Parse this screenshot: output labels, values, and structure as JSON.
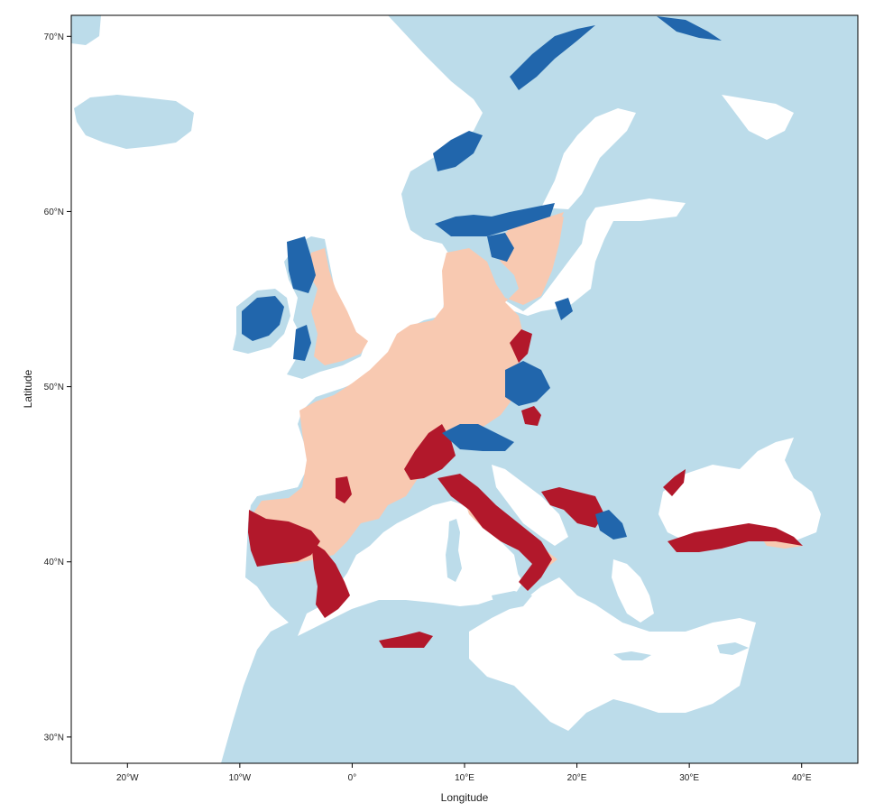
{
  "map": {
    "xlabel": "Longitude",
    "ylabel": "Latitude",
    "xlim": [
      -25,
      45
    ],
    "ylim": [
      28.5,
      71.2
    ],
    "x_ticks": [
      {
        "value": -20,
        "label": "20°W"
      },
      {
        "value": -10,
        "label": "10°W"
      },
      {
        "value": 0,
        "label": "0°"
      },
      {
        "value": 10,
        "label": "10°E"
      },
      {
        "value": 20,
        "label": "20°E"
      },
      {
        "value": 30,
        "label": "30°E"
      },
      {
        "value": 40,
        "label": "40°E"
      }
    ],
    "y_ticks": [
      {
        "value": 30,
        "label": "30°N"
      },
      {
        "value": 40,
        "label": "40°N"
      },
      {
        "value": 50,
        "label": "50°N"
      },
      {
        "value": 60,
        "label": "60°N"
      },
      {
        "value": 70,
        "label": "70°N"
      }
    ],
    "colors": {
      "background_land": "#bcdcea",
      "water": "#ffffff",
      "dark_red": "#b2182b",
      "light_red": "#f8c9b1",
      "dark_blue": "#2166ac",
      "frame": "#000000"
    }
  }
}
